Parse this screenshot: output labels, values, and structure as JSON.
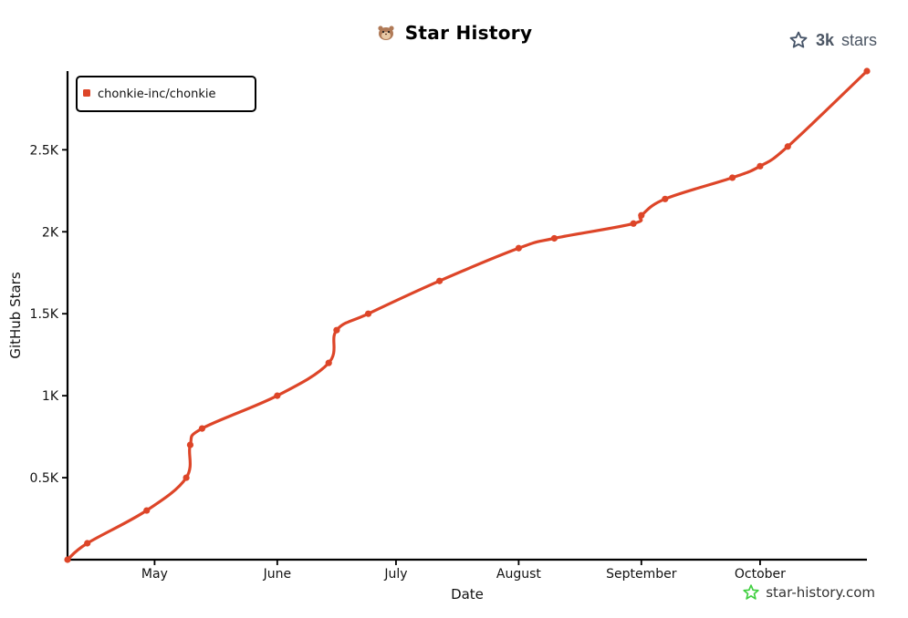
{
  "header": {
    "title": "Star History"
  },
  "badge": {
    "count": "3k",
    "label": "stars"
  },
  "watermark": {
    "text": "star-history.com"
  },
  "colors": {
    "series": "#dd4528",
    "axis": "#000000",
    "star": "#475569",
    "watermark_star": "#3fcf3f"
  },
  "chart_data": {
    "type": "line",
    "xlabel": "Date",
    "ylabel": "GitHub Stars",
    "x_tick_labels": [
      "May",
      "June",
      "July",
      "August",
      "September",
      "October"
    ],
    "x_ticks": [
      "2024-05-01",
      "2024-06-01",
      "2024-07-01",
      "2024-08-01",
      "2024-09-01",
      "2024-10-01"
    ],
    "xlim": [
      "2024-04-09",
      "2024-10-28"
    ],
    "y_ticks": [
      500,
      1000,
      1500,
      2000,
      2500
    ],
    "y_tick_labels": [
      "0.5K",
      "1K",
      "1.5K",
      "2K",
      "2.5K"
    ],
    "ylim": [
      0,
      2980
    ],
    "grid": false,
    "legend_position": "top-left",
    "series": [
      {
        "name": "chonkie-inc/chonkie",
        "color": "#dd4528",
        "points": [
          {
            "x": "2024-04-09",
            "y": 0
          },
          {
            "x": "2024-04-14",
            "y": 100
          },
          {
            "x": "2024-04-29",
            "y": 300
          },
          {
            "x": "2024-05-09",
            "y": 500
          },
          {
            "x": "2024-05-10",
            "y": 700
          },
          {
            "x": "2024-05-13",
            "y": 800
          },
          {
            "x": "2024-06-01",
            "y": 1000
          },
          {
            "x": "2024-06-14",
            "y": 1200
          },
          {
            "x": "2024-06-16",
            "y": 1400
          },
          {
            "x": "2024-06-24",
            "y": 1500
          },
          {
            "x": "2024-07-12",
            "y": 1700
          },
          {
            "x": "2024-08-01",
            "y": 1900
          },
          {
            "x": "2024-08-10",
            "y": 1960
          },
          {
            "x": "2024-08-30",
            "y": 2050
          },
          {
            "x": "2024-09-01",
            "y": 2100
          },
          {
            "x": "2024-09-07",
            "y": 2200
          },
          {
            "x": "2024-09-24",
            "y": 2330
          },
          {
            "x": "2024-10-01",
            "y": 2400
          },
          {
            "x": "2024-10-08",
            "y": 2520
          },
          {
            "x": "2024-10-28",
            "y": 2980
          }
        ]
      }
    ]
  }
}
